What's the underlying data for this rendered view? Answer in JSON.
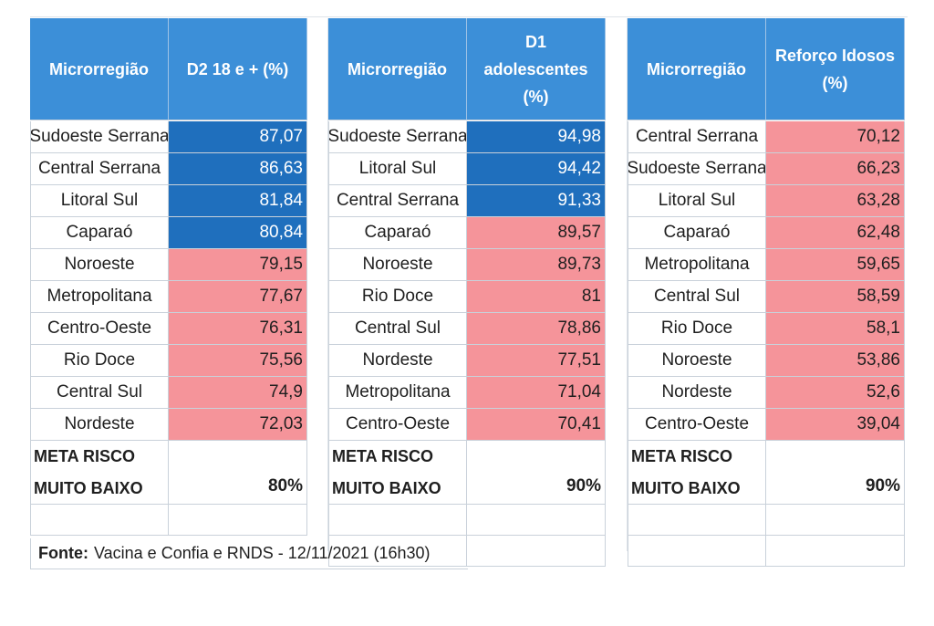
{
  "tables": [
    {
      "header": {
        "region": "Microrregião",
        "metric": "D2 18 e + (%)"
      },
      "rows": [
        {
          "region": "Sudoeste Serrana",
          "value": "87,07",
          "color": "#1f6fbd"
        },
        {
          "region": "Central Serrana",
          "value": "86,63",
          "color": "#1f6fbd"
        },
        {
          "region": "Litoral Sul",
          "value": "81,84",
          "color": "#1f6fbd"
        },
        {
          "region": "Caparaó",
          "value": "80,84",
          "color": "#1f6fbd"
        },
        {
          "region": "Noroeste",
          "value": "79,15",
          "color": "#f5949a"
        },
        {
          "region": "Metropolitana",
          "value": "77,67",
          "color": "#f5949a"
        },
        {
          "region": "Centro-Oeste",
          "value": "76,31",
          "color": "#f5949a"
        },
        {
          "region": "Rio Doce",
          "value": "75,56",
          "color": "#f5949a"
        },
        {
          "region": "Central Sul",
          "value": "74,9",
          "color": "#f5949a"
        },
        {
          "region": "Nordeste",
          "value": "72,03",
          "color": "#f5949a"
        }
      ],
      "meta": {
        "line1": "META RISCO",
        "line2": "MUITO BAIXO",
        "value": "80%"
      }
    },
    {
      "header": {
        "region": "Microrregião",
        "metric": "D1 adolescentes (%)"
      },
      "rows": [
        {
          "region": "Sudoeste Serrana",
          "value": "94,98",
          "color": "#1f6fbd"
        },
        {
          "region": "Litoral Sul",
          "value": "94,42",
          "color": "#1f6fbd"
        },
        {
          "region": "Central Serrana",
          "value": "91,33",
          "color": "#1f6fbd"
        },
        {
          "region": "Caparaó",
          "value": "89,57",
          "color": "#f5949a"
        },
        {
          "region": "Noroeste",
          "value": "89,73",
          "color": "#f5949a"
        },
        {
          "region": "Rio Doce",
          "value": "81",
          "color": "#f5949a"
        },
        {
          "region": "Central Sul",
          "value": "78,86",
          "color": "#f5949a"
        },
        {
          "region": "Nordeste",
          "value": "77,51",
          "color": "#f5949a"
        },
        {
          "region": "Metropolitana",
          "value": "71,04",
          "color": "#f5949a"
        },
        {
          "region": "Centro-Oeste",
          "value": "70,41",
          "color": "#f5949a"
        }
      ],
      "meta": {
        "line1": "META RISCO",
        "line2": "MUITO BAIXO",
        "value": "90%"
      }
    },
    {
      "header": {
        "region": "Microrregião",
        "metric": "Reforço Idosos (%)"
      },
      "rows": [
        {
          "region": "Central Serrana",
          "value": "70,12",
          "color": "#f5949a"
        },
        {
          "region": "Sudoeste Serrana",
          "value": "66,23",
          "color": "#f5949a"
        },
        {
          "region": "Litoral Sul",
          "value": "63,28",
          "color": "#f5949a"
        },
        {
          "region": "Caparaó",
          "value": "62,48",
          "color": "#f5949a"
        },
        {
          "region": "Metropolitana",
          "value": "59,65",
          "color": "#f5949a"
        },
        {
          "region": "Central Sul",
          "value": "58,59",
          "color": "#f5949a"
        },
        {
          "region": "Rio Doce",
          "value": "58,1",
          "color": "#f5949a"
        },
        {
          "region": "Noroeste",
          "value": "53,86",
          "color": "#f5949a"
        },
        {
          "region": "Nordeste",
          "value": "52,6",
          "color": "#f5949a"
        },
        {
          "region": "Centro-Oeste",
          "value": "39,04",
          "color": "#f5949a"
        }
      ],
      "meta": {
        "line1": "META RISCO",
        "line2": "MUITO BAIXO",
        "value": "90%"
      }
    }
  ],
  "source": {
    "label": "Fonte:",
    "text": "Vacina e Confia e RNDS - 12/11/2021 (16h30)"
  },
  "colors": {
    "header": "#3c8fd8",
    "above_goal": "#1f6fbd",
    "below_goal": "#f5949a"
  }
}
